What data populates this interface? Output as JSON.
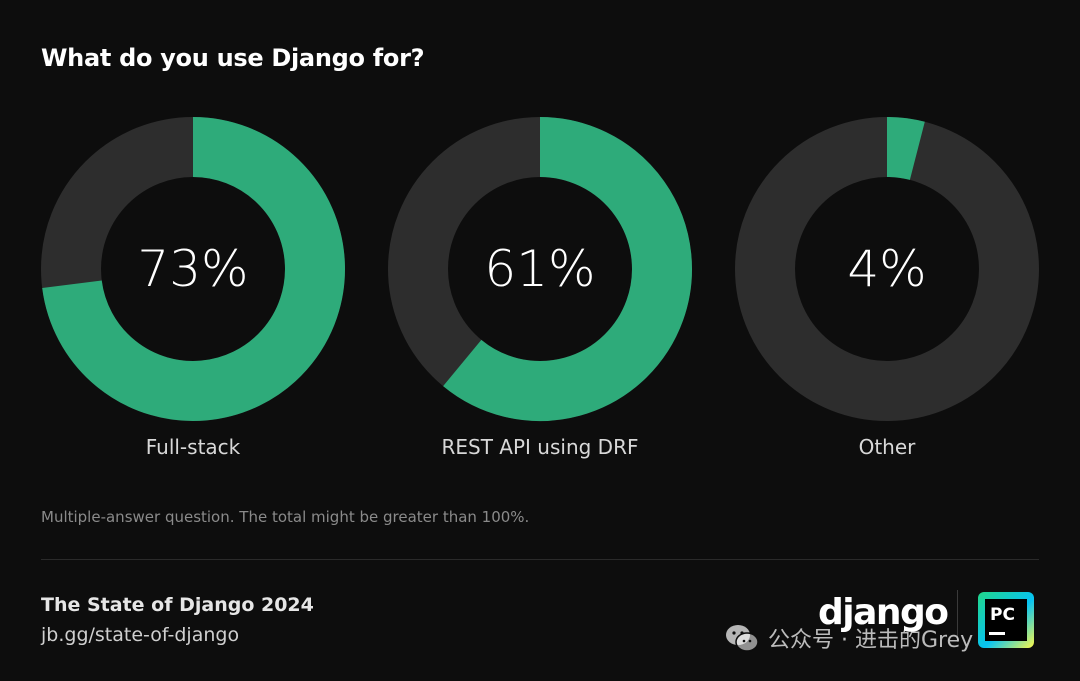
{
  "title": "What do you use Django for?",
  "chart_data": {
    "type": "pie",
    "subtype": "donut",
    "title": "What do you use Django for?",
    "items": [
      {
        "label": "Full-stack",
        "value": 73,
        "display": "73%"
      },
      {
        "label": "REST API using DRF",
        "value": 61,
        "display": "61%"
      },
      {
        "label": "Other",
        "value": 4,
        "display": "4%"
      }
    ],
    "max": 100,
    "colors": {
      "fill": "#2eab7a",
      "track": "#2d2d2d",
      "background": "#0d0d0d"
    }
  },
  "note": "Multiple-answer question. The total might be greater than 100%.",
  "footer": {
    "survey_title": "The State of Django 2024",
    "link": "jb.gg/state-of-django",
    "django_logo": "django",
    "pycharm_logo": "PC"
  },
  "watermark": {
    "text": "公众号 · 进击的Grey",
    "icon": "wechat-icon"
  }
}
